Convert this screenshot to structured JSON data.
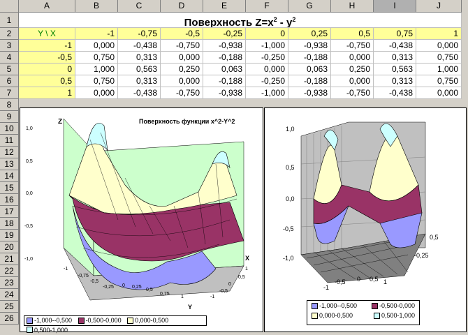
{
  "columns": [
    "A",
    "B",
    "C",
    "D",
    "E",
    "F",
    "G",
    "H",
    "I",
    "J"
  ],
  "rows": [
    "1",
    "2",
    "3",
    "4",
    "5",
    "6",
    "7",
    "8",
    "9",
    "10",
    "11",
    "12",
    "13",
    "14",
    "15",
    "16",
    "17",
    "18",
    "19",
    "20",
    "21",
    "22",
    "23",
    "24",
    "25",
    "26"
  ],
  "table": {
    "title_main": "Поверхность Z=x",
    "title_exp1": "2",
    "title_mid": " - y",
    "title_exp2": "2",
    "corner_label": "Y \\ X",
    "x_values": [
      "-1",
      "-0,75",
      "-0,5",
      "-0,25",
      "0",
      "0,25",
      "0,5",
      "0,75",
      "1"
    ],
    "y_values": [
      "-1",
      "-0,5",
      "0",
      "0,5",
      "1"
    ],
    "cells": [
      [
        "0,000",
        "-0,438",
        "-0,750",
        "-0,938",
        "-1,000",
        "-0,938",
        "-0,750",
        "-0,438",
        "0,000"
      ],
      [
        "0,750",
        "0,313",
        "0,000",
        "-0,188",
        "-0,250",
        "-0,188",
        "0,000",
        "0,313",
        "0,750"
      ],
      [
        "1,000",
        "0,563",
        "0,250",
        "0,063",
        "0,000",
        "0,063",
        "0,250",
        "0,563",
        "1,000"
      ],
      [
        "0,750",
        "0,313",
        "0,000",
        "-0,188",
        "-0,250",
        "-0,188",
        "0,000",
        "0,313",
        "0,750"
      ],
      [
        "0,000",
        "-0,438",
        "-0,750",
        "-0,938",
        "-1,000",
        "-0,938",
        "-0,750",
        "-0,438",
        "0,000"
      ]
    ]
  },
  "chart1": {
    "title": "Поверхность функции x^2-Y^2",
    "z_label": "Z",
    "x_label": "X",
    "y_label": "Y",
    "z_ticks": [
      "1,0",
      "0,5",
      "0,0",
      "-0,5",
      "-1,0"
    ],
    "x_ticks": [
      "-1",
      "-0,75",
      "-0,5",
      "-0,25",
      "0",
      "0,25",
      "0,5",
      "0,75",
      "1"
    ],
    "y_ticks": [
      "1",
      "0,5",
      "0",
      "-0,5",
      "-1"
    ],
    "legend": [
      "-1,000--0,500",
      "-0,500-0,000",
      "0,000-0,500",
      "0,500-1,000"
    ]
  },
  "chart2": {
    "z_ticks": [
      "1,0",
      "0,5",
      "0,0",
      "-0,5",
      "-1,0"
    ],
    "x_ticks": [
      "-1",
      "-0,5",
      "0",
      "0,5",
      "1"
    ],
    "y_ticks": [
      "0,5",
      "-0,25"
    ],
    "legend": [
      "-1,000--0,500",
      "-0,500-0,000",
      "0,000-0,500",
      "0,500-1,000"
    ]
  },
  "colors": {
    "band1": "#9999ff",
    "band2": "#993366",
    "band3": "#ffffcc",
    "band4": "#ccffff",
    "wall": "#ccffcc",
    "floor": "#c0c0c0"
  }
}
